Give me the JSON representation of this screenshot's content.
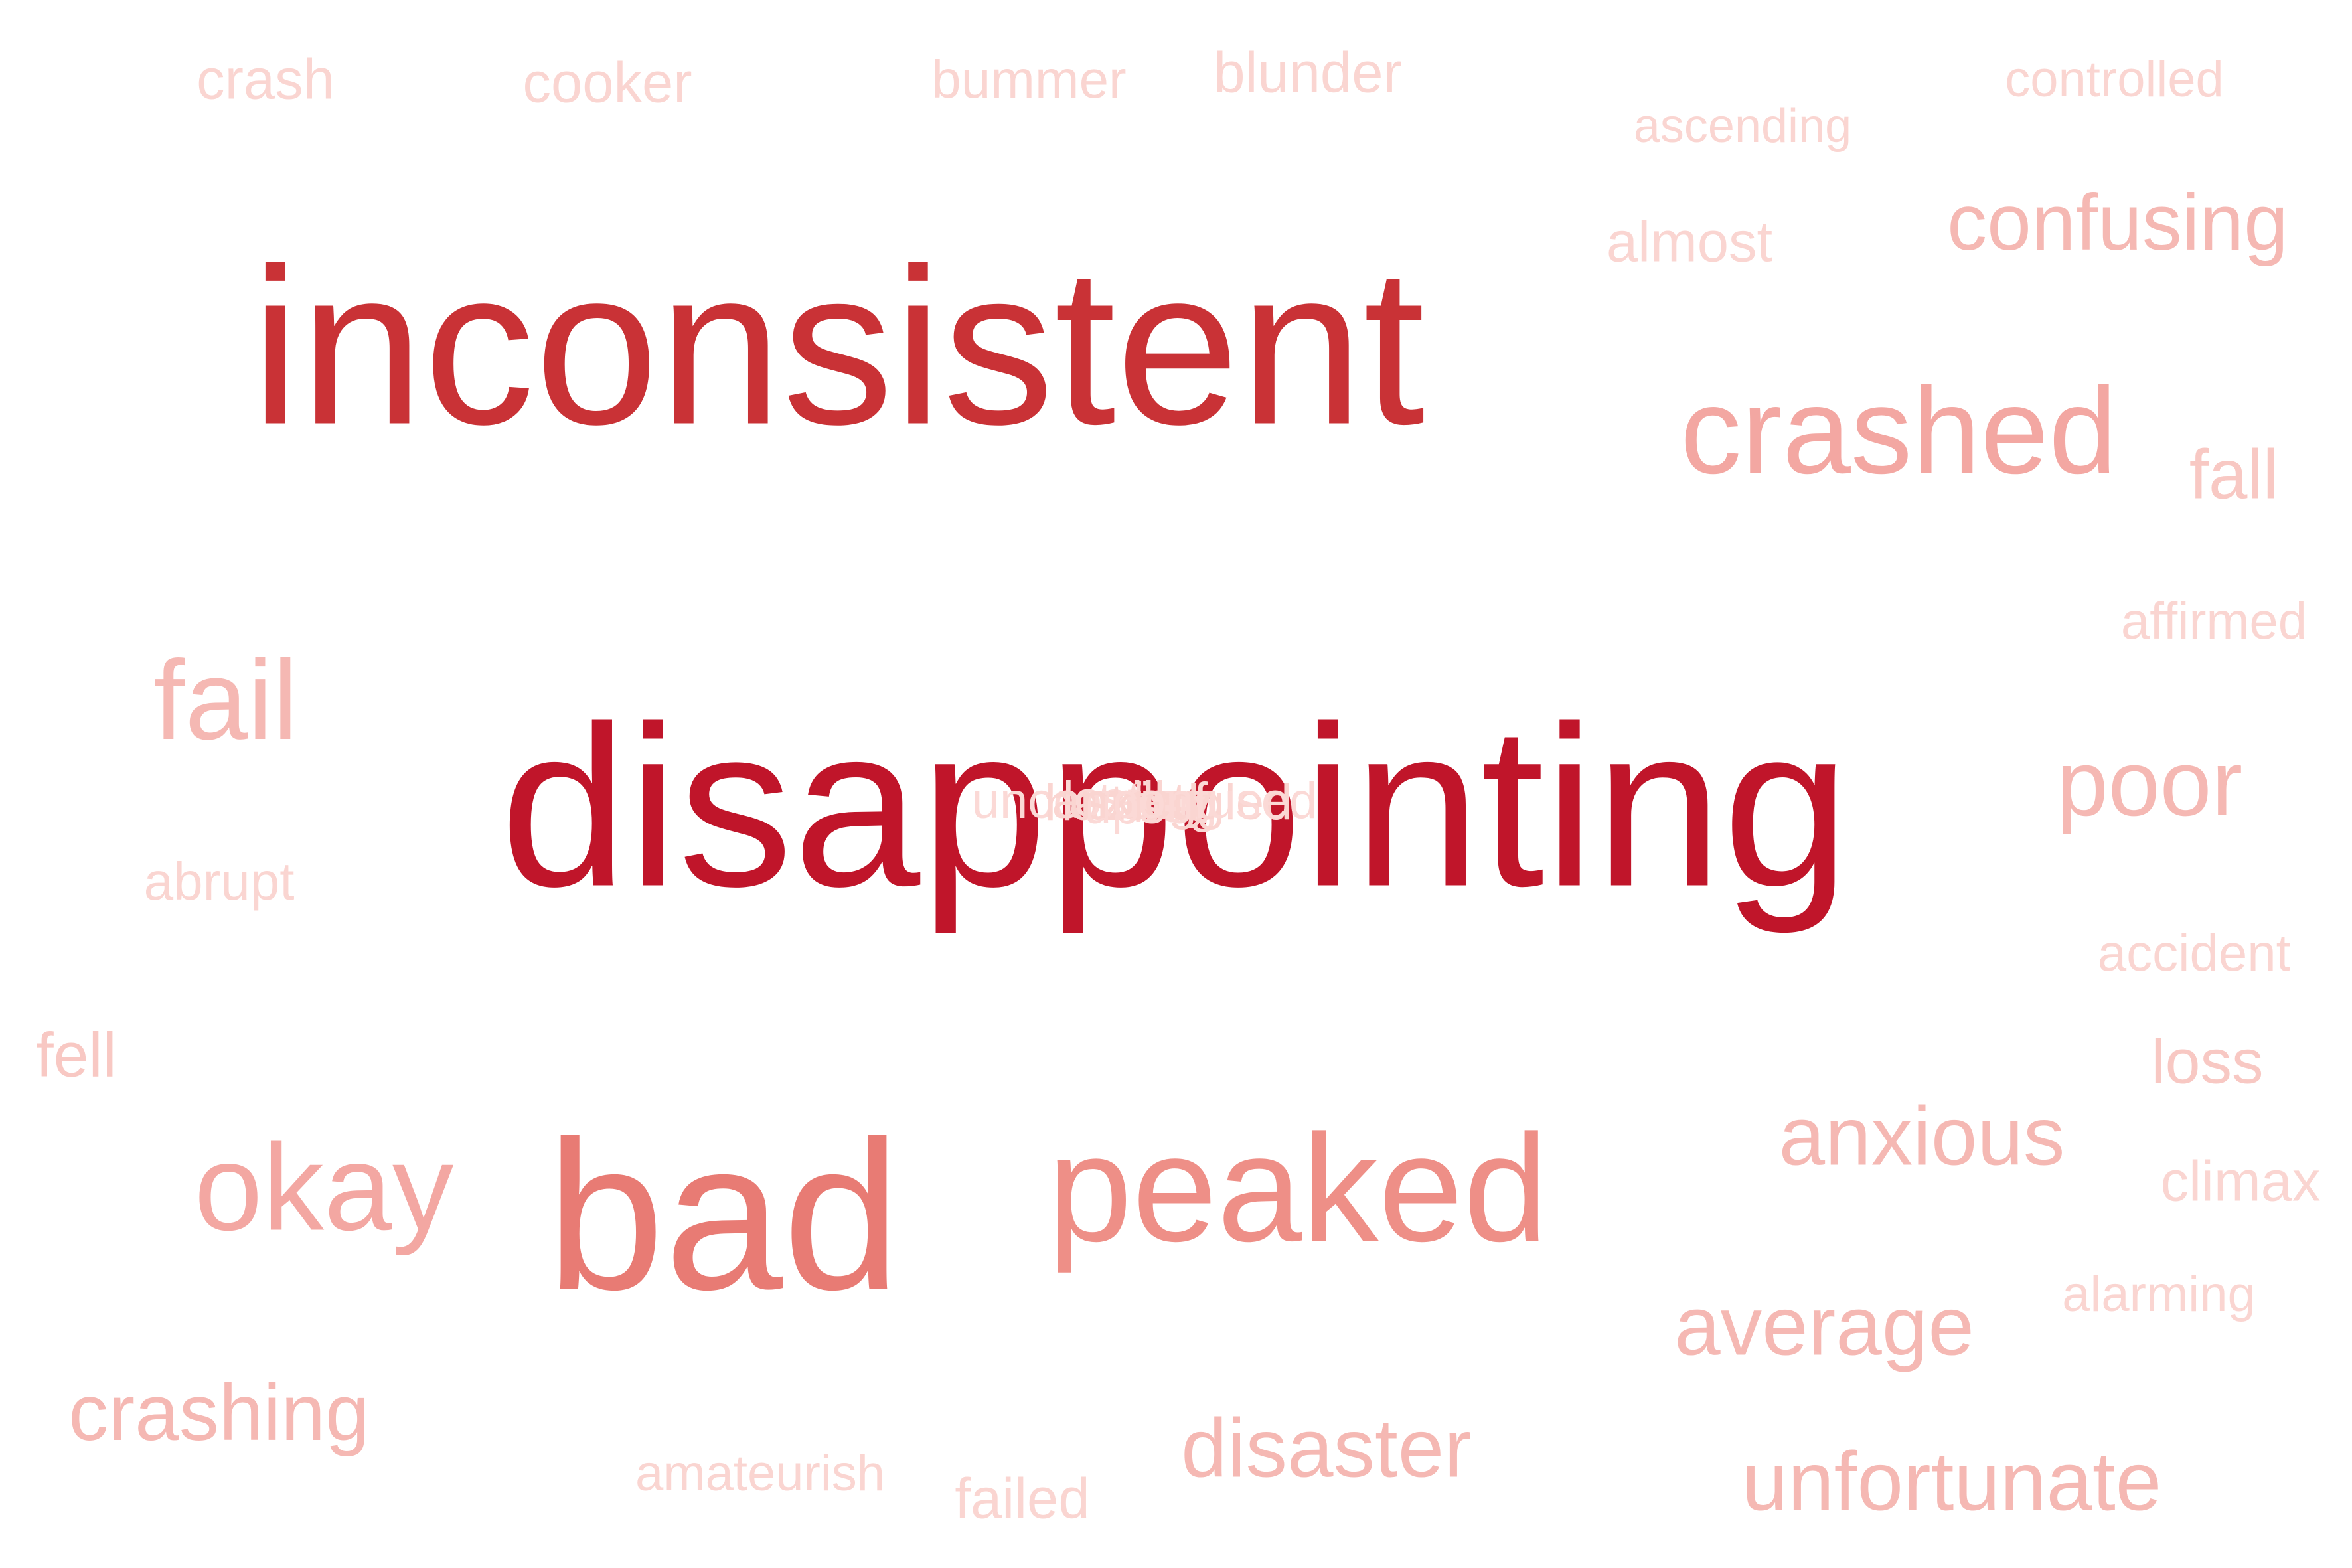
{
  "wordcloud": {
    "words": {
      "disappointing": "disappointing",
      "inconsistent": "inconsistent",
      "bad": "bad",
      "peaked": "peaked",
      "crashed": "crashed",
      "okay": "okay",
      "fail": "fail",
      "poor": "poor",
      "confusing": "confusing",
      "anxious": "anxious",
      "average": "average",
      "disaster": "disaster",
      "unfortunate": "unfortunate",
      "crashing": "crashing",
      "fall": "fall",
      "fell": "fell",
      "loss": "loss",
      "crash": "crash",
      "cooker": "cooker",
      "bummer": "bummer",
      "blunder": "blunder",
      "controlled": "controlled",
      "ascending": "ascending",
      "almost": "almost",
      "affirmed": "affirmed",
      "abrupt": "abrupt",
      "accident": "accident",
      "climax": "climax",
      "alarming": "alarming",
      "amateurish": "amateurish",
      "failed": "failed"
    },
    "overlap_cluster": [
      "uncertain",
      "ill",
      "bug",
      "hazard",
      "lost",
      "struggled",
      "upset",
      "anxiety",
      "confused"
    ],
    "colors": {
      "darkest": "#c0152a",
      "dark": "#c93236",
      "medium": "#e87b74",
      "medium_light": "#ee8f87",
      "light": "#f3a7a2",
      "lighter": "#f5b8b3",
      "pale": "#f8c8c3",
      "palest": "#fad5d1",
      "background": "#ffffff"
    }
  }
}
